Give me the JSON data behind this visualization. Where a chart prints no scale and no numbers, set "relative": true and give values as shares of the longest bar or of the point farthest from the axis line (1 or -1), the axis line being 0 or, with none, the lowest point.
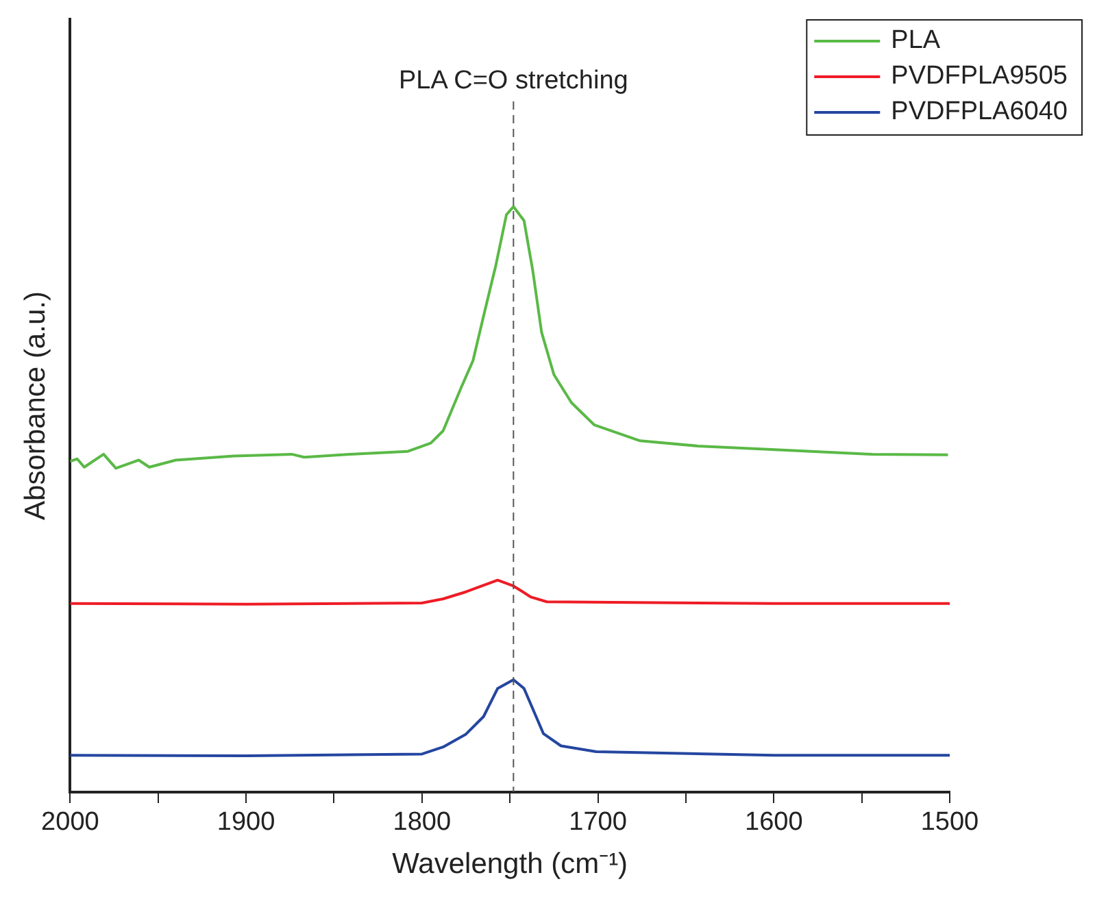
{
  "chart_data": {
    "type": "line",
    "relative": true,
    "xlabel": "Wavelength (cm⁻¹)",
    "ylabel": "Absorbance (a.u.)",
    "xlim": [
      2000,
      1500
    ],
    "xticks": [
      2000,
      {
        "value": 1950,
        "label": null
      },
      1900,
      {
        "value": 1850,
        "label": null
      },
      1800,
      {
        "value": 1750,
        "label": null
      },
      1700,
      {
        "value": 1650,
        "label": null
      },
      1600,
      {
        "value": 1550,
        "label": null
      },
      1500
    ],
    "legend": "top right",
    "grid": false,
    "marker": "none",
    "line_style": "solid",
    "ref_lines": [
      {
        "axis": "x",
        "value": 1748,
        "label": "PLA C=O stretching",
        "color": "#555555",
        "line_style": "dashed"
      }
    ],
    "series": [
      {
        "name": "PLA",
        "color": "#5ab946",
        "x": [
          2000,
          1996,
          1992,
          1981,
          1974,
          1961,
          1955,
          1940,
          1907,
          1874,
          1867,
          1841,
          1808,
          1795,
          1788,
          1778,
          1771,
          1765,
          1758,
          1752,
          1748,
          1742,
          1737,
          1732,
          1725,
          1715,
          1702,
          1676,
          1643,
          1593,
          1544,
          1501
        ],
        "values": [
          0.565,
          0.569,
          0.555,
          0.577,
          0.553,
          0.567,
          0.555,
          0.567,
          0.574,
          0.577,
          0.572,
          0.577,
          0.582,
          0.596,
          0.617,
          0.689,
          0.737,
          0.813,
          0.9,
          0.986,
          1.0,
          0.976,
          0.89,
          0.785,
          0.713,
          0.665,
          0.627,
          0.6,
          0.591,
          0.584,
          0.577,
          0.576
        ]
      },
      {
        "name": "PVDFPLA9505",
        "color": "#ee1c25",
        "x": [
          2000,
          1900,
          1800,
          1788,
          1775,
          1757,
          1748,
          1738,
          1729,
          1600,
          1500
        ],
        "values": [
          0.322,
          0.321,
          0.323,
          0.33,
          0.342,
          0.362,
          0.352,
          0.333,
          0.325,
          0.322,
          0.322
        ]
      },
      {
        "name": "PVDFPLA6040",
        "color": "#2446a0",
        "x": [
          2000,
          1900,
          1800,
          1788,
          1775,
          1765,
          1757,
          1748,
          1742,
          1731,
          1721,
          1701,
          1600,
          1500
        ],
        "values": [
          0.063,
          0.062,
          0.065,
          0.077,
          0.099,
          0.129,
          0.177,
          0.192,
          0.177,
          0.1,
          0.079,
          0.069,
          0.063,
          0.063
        ]
      }
    ]
  }
}
